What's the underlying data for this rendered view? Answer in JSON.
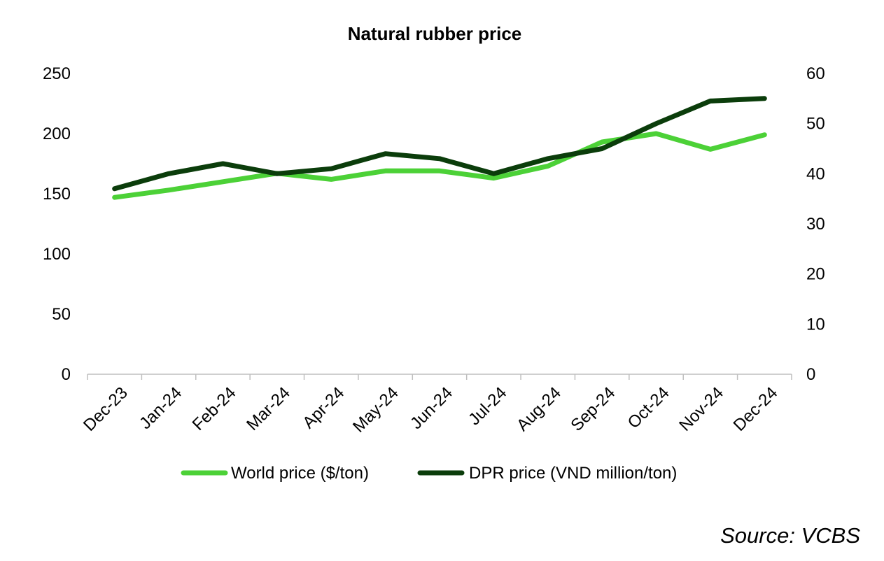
{
  "chart_data": {
    "type": "line",
    "title": "Natural rubber price",
    "categories": [
      "Dec-23",
      "Jan-24",
      "Feb-24",
      "Mar-24",
      "Apr-24",
      "May-24",
      "Jun-24",
      "Jul-24",
      "Aug-24",
      "Sep-24",
      "Oct-24",
      "Nov-24",
      "Dec-24"
    ],
    "y_left": {
      "min": 0,
      "max": 250,
      "ticks": [
        0,
        50,
        100,
        150,
        200,
        250
      ]
    },
    "y_right": {
      "min": 0,
      "max": 60,
      "ticks": [
        0,
        10,
        20,
        30,
        40,
        50,
        60
      ]
    },
    "series": [
      {
        "name": "World price ($/ton)",
        "axis": "left",
        "color": "#4cd137",
        "values": [
          147,
          153,
          160,
          167,
          162,
          169,
          169,
          163,
          173,
          193,
          200,
          187,
          199
        ]
      },
      {
        "name": "DPR price (VND million/ton)",
        "axis": "right",
        "color": "#0b3d0b",
        "values": [
          37,
          40,
          42,
          40,
          41,
          44,
          43,
          40,
          43,
          45,
          50,
          54.5,
          55
        ]
      }
    ],
    "grid": false,
    "legend": "bottom"
  },
  "source": "Source: VCBS"
}
